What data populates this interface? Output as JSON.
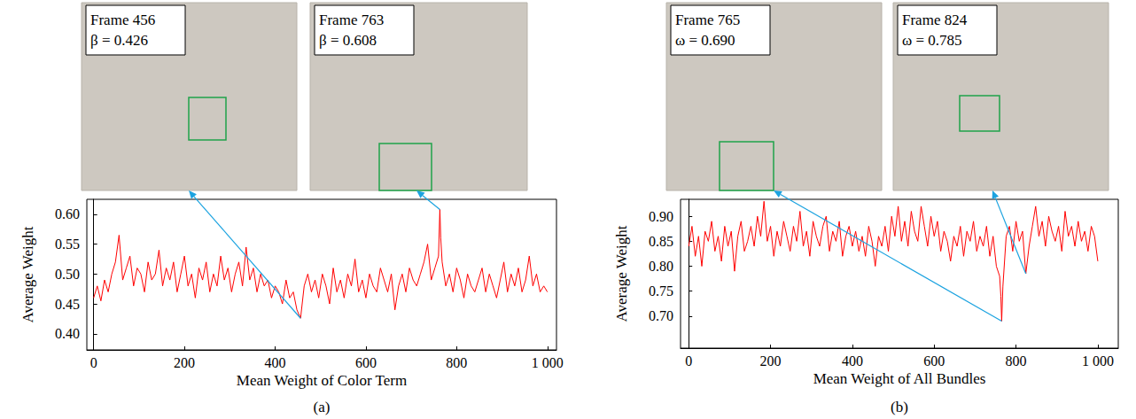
{
  "chart_data": [
    {
      "type": "line",
      "panel_label": "(a)",
      "x_label": "Mean Weight of Color Term",
      "y_label": "Average Weight",
      "color": "#ff0000",
      "grid": false,
      "xlim": [
        -15,
        1020
      ],
      "ylim": [
        0.373,
        0.625
      ],
      "xticks": [
        0,
        200,
        400,
        600,
        800,
        {
          "value": 1000,
          "label": "1 000"
        }
      ],
      "yticks": [
        {
          "value": 0.4,
          "label": "0.40"
        },
        {
          "value": 0.45,
          "label": "0.45"
        },
        {
          "value": 0.5,
          "label": "0.50"
        },
        {
          "value": 0.55,
          "label": "0.55"
        },
        {
          "value": 0.6,
          "label": "0.60"
        }
      ],
      "x": [
        0,
        8,
        16,
        24,
        32,
        40,
        48,
        56,
        64,
        72,
        80,
        88,
        96,
        104,
        112,
        120,
        128,
        136,
        144,
        152,
        160,
        168,
        176,
        184,
        192,
        200,
        208,
        216,
        224,
        232,
        240,
        248,
        256,
        264,
        272,
        280,
        288,
        296,
        304,
        312,
        320,
        328,
        336,
        344,
        352,
        360,
        368,
        376,
        384,
        392,
        400,
        408,
        416,
        424,
        432,
        440,
        448,
        456,
        464,
        472,
        480,
        488,
        496,
        504,
        512,
        520,
        528,
        536,
        544,
        552,
        560,
        568,
        576,
        584,
        592,
        600,
        608,
        616,
        624,
        632,
        640,
        648,
        656,
        664,
        672,
        680,
        688,
        696,
        704,
        712,
        720,
        728,
        736,
        744,
        752,
        760,
        763,
        765,
        768,
        776,
        784,
        792,
        800,
        808,
        816,
        824,
        832,
        840,
        848,
        856,
        864,
        872,
        880,
        888,
        896,
        904,
        912,
        920,
        928,
        936,
        944,
        952,
        960,
        968,
        976,
        984,
        992,
        1000
      ],
      "values": [
        0.46,
        0.48,
        0.455,
        0.49,
        0.47,
        0.5,
        0.52,
        0.565,
        0.49,
        0.51,
        0.53,
        0.48,
        0.51,
        0.5,
        0.47,
        0.52,
        0.49,
        0.5,
        0.54,
        0.48,
        0.51,
        0.49,
        0.52,
        0.47,
        0.5,
        0.53,
        0.48,
        0.5,
        0.46,
        0.51,
        0.49,
        0.52,
        0.47,
        0.5,
        0.48,
        0.53,
        0.49,
        0.51,
        0.47,
        0.5,
        0.52,
        0.48,
        0.545,
        0.49,
        0.51,
        0.47,
        0.5,
        0.48,
        0.49,
        0.46,
        0.48,
        0.47,
        0.45,
        0.49,
        0.46,
        0.47,
        0.44,
        0.426,
        0.48,
        0.5,
        0.47,
        0.49,
        0.46,
        0.5,
        0.48,
        0.45,
        0.51,
        0.47,
        0.49,
        0.46,
        0.5,
        0.48,
        0.525,
        0.47,
        0.49,
        0.46,
        0.5,
        0.48,
        0.47,
        0.51,
        0.49,
        0.47,
        0.5,
        0.44,
        0.48,
        0.5,
        0.47,
        0.51,
        0.49,
        0.48,
        0.5,
        0.52,
        0.55,
        0.49,
        0.51,
        0.53,
        0.608,
        0.56,
        0.52,
        0.48,
        0.5,
        0.47,
        0.51,
        0.49,
        0.46,
        0.5,
        0.48,
        0.47,
        0.49,
        0.51,
        0.47,
        0.5,
        0.48,
        0.46,
        0.49,
        0.52,
        0.47,
        0.5,
        0.48,
        0.51,
        0.47,
        0.49,
        0.53,
        0.48,
        0.5,
        0.47,
        0.48,
        0.47
      ],
      "annotations": [
        {
          "frame_label": "Frame 456",
          "weight_label": "β = 0.426",
          "x": 456,
          "y": 0.426
        },
        {
          "frame_label": "Frame 763",
          "weight_label": "β = 0.608",
          "x": 763,
          "y": 0.608
        }
      ]
    },
    {
      "type": "line",
      "panel_label": "(b)",
      "x_label": "Mean Weight of All Bundles",
      "y_label": "Average Weight",
      "color": "#ff0000",
      "grid": false,
      "xlim": [
        -20,
        1050
      ],
      "ylim": [
        0.636,
        0.934
      ],
      "xticks": [
        0,
        200,
        400,
        600,
        800,
        {
          "value": 1000,
          "label": "1 000"
        }
      ],
      "yticks": [
        {
          "value": 0.7,
          "label": "0.70"
        },
        {
          "value": 0.75,
          "label": "0.75"
        },
        {
          "value": 0.8,
          "label": "0.80"
        },
        {
          "value": 0.85,
          "label": "0.85"
        },
        {
          "value": 0.9,
          "label": "0.90"
        }
      ],
      "x": [
        0,
        8,
        16,
        24,
        32,
        40,
        48,
        56,
        64,
        72,
        80,
        88,
        96,
        104,
        112,
        120,
        128,
        136,
        144,
        152,
        160,
        168,
        176,
        184,
        192,
        200,
        208,
        216,
        224,
        232,
        240,
        248,
        256,
        264,
        272,
        280,
        288,
        296,
        304,
        312,
        320,
        328,
        336,
        344,
        352,
        360,
        368,
        376,
        384,
        392,
        400,
        408,
        416,
        424,
        432,
        440,
        448,
        456,
        464,
        472,
        480,
        488,
        496,
        504,
        512,
        520,
        528,
        536,
        544,
        552,
        560,
        568,
        576,
        584,
        592,
        600,
        608,
        616,
        624,
        632,
        640,
        648,
        656,
        664,
        672,
        680,
        688,
        696,
        704,
        712,
        720,
        728,
        736,
        744,
        752,
        760,
        763,
        765,
        768,
        776,
        784,
        792,
        800,
        808,
        816,
        824,
        832,
        840,
        848,
        856,
        864,
        872,
        880,
        888,
        896,
        904,
        912,
        920,
        928,
        936,
        944,
        952,
        960,
        968,
        976,
        984,
        992,
        1000
      ],
      "values": [
        0.84,
        0.88,
        0.82,
        0.86,
        0.8,
        0.87,
        0.85,
        0.89,
        0.83,
        0.86,
        0.81,
        0.88,
        0.84,
        0.87,
        0.79,
        0.86,
        0.89,
        0.83,
        0.85,
        0.88,
        0.84,
        0.9,
        0.86,
        0.93,
        0.85,
        0.88,
        0.82,
        0.87,
        0.84,
        0.89,
        0.86,
        0.83,
        0.88,
        0.85,
        0.91,
        0.84,
        0.87,
        0.82,
        0.89,
        0.86,
        0.84,
        0.88,
        0.9,
        0.83,
        0.87,
        0.85,
        0.89,
        0.82,
        0.86,
        0.88,
        0.84,
        0.87,
        0.83,
        0.86,
        0.82,
        0.88,
        0.85,
        0.8,
        0.86,
        0.84,
        0.88,
        0.83,
        0.9,
        0.86,
        0.92,
        0.85,
        0.89,
        0.84,
        0.91,
        0.87,
        0.85,
        0.92,
        0.88,
        0.84,
        0.9,
        0.86,
        0.89,
        0.83,
        0.87,
        0.85,
        0.81,
        0.86,
        0.84,
        0.88,
        0.82,
        0.87,
        0.85,
        0.89,
        0.83,
        0.86,
        0.84,
        0.88,
        0.82,
        0.86,
        0.8,
        0.78,
        0.74,
        0.69,
        0.76,
        0.86,
        0.88,
        0.83,
        0.89,
        0.85,
        0.87,
        0.785,
        0.84,
        0.88,
        0.92,
        0.86,
        0.89,
        0.84,
        0.9,
        0.87,
        0.85,
        0.88,
        0.83,
        0.91,
        0.86,
        0.88,
        0.84,
        0.89,
        0.85,
        0.87,
        0.83,
        0.88,
        0.86,
        0.81
      ],
      "annotations": [
        {
          "frame_label": "Frame 765",
          "weight_label": "ω = 0.690",
          "x": 765,
          "y": 0.69
        },
        {
          "frame_label": "Frame 824",
          "weight_label": "ω = 0.785",
          "x": 824,
          "y": 0.785
        }
      ]
    }
  ]
}
